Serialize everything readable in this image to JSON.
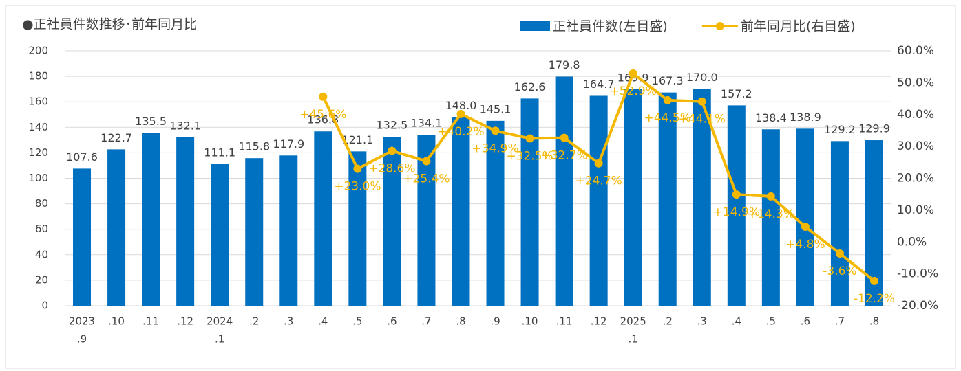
{
  "chart_data": {
    "type": "bar-line",
    "title": "●正社員件数推移･前年同月比",
    "categories": [
      [
        "2023",
        ".9"
      ],
      [
        ".10"
      ],
      [
        ".11"
      ],
      [
        ".12"
      ],
      [
        "2024",
        ".1"
      ],
      [
        ".2"
      ],
      [
        ".3"
      ],
      [
        ".4"
      ],
      [
        ".5"
      ],
      [
        ".6"
      ],
      [
        ".7"
      ],
      [
        ".8"
      ],
      [
        ".9"
      ],
      [
        ".10"
      ],
      [
        ".11"
      ],
      [
        ".12"
      ],
      [
        "2025",
        ".1"
      ],
      [
        ".2"
      ],
      [
        ".3"
      ],
      [
        ".4"
      ],
      [
        ".5"
      ],
      [
        ".6"
      ],
      [
        ".7"
      ],
      [
        ".8"
      ]
    ],
    "series": [
      {
        "name": "正社員件数(左目盛)",
        "type": "bar",
        "color": "#0070c0",
        "values": [
          107.6,
          122.7,
          135.5,
          132.1,
          111.1,
          115.8,
          117.9,
          136.8,
          121.1,
          132.5,
          134.1,
          148.0,
          145.1,
          162.6,
          179.8,
          164.7,
          169.9,
          167.3,
          170.0,
          157.2,
          138.4,
          138.9,
          129.2,
          129.9
        ],
        "value_labels": [
          "107.6",
          "122.7",
          "135.5",
          "132.1",
          "111.1",
          "115.8",
          "117.9",
          "136.8",
          "121.1",
          "132.5",
          "134.1",
          "148.0",
          "145.1",
          "162.6",
          "179.8",
          "164.7",
          "169.9",
          "167.3",
          "170.0",
          "157.2",
          "138.4",
          "138.9",
          "129.2",
          "129.9"
        ]
      },
      {
        "name": "前年同月比(右目盛)",
        "type": "line",
        "axis": "y2",
        "color": "#f5b800",
        "values": [
          null,
          null,
          null,
          null,
          null,
          null,
          null,
          45.6,
          23.0,
          28.6,
          25.4,
          40.2,
          34.9,
          32.5,
          32.7,
          24.7,
          52.9,
          44.5,
          44.1,
          14.9,
          14.3,
          4.8,
          -3.6,
          -12.2
        ],
        "value_labels": [
          null,
          null,
          null,
          null,
          null,
          null,
          null,
          "+45.6%",
          "+23.0%",
          "+28.6%",
          "+25.4%",
          "+40.2%",
          "+34.9%",
          "+32.5%",
          "+32.7%",
          "+24.7%",
          "+52.9%",
          "+44.5%",
          "+44.1%",
          "+14.9%",
          "+14.3%",
          "+4.8%",
          "-3.6%",
          "-12.2%"
        ]
      }
    ],
    "ylim": [
      0,
      200
    ],
    "yticks": [
      0,
      20,
      40,
      60,
      80,
      100,
      120,
      140,
      160,
      180,
      200
    ],
    "y2lim": [
      -20,
      60
    ],
    "y2ticks": [
      {
        "value": -20,
        "label": "-20.0%"
      },
      {
        "value": -10,
        "label": "-10.0%"
      },
      {
        "value": 0,
        "label": "0.0%"
      },
      {
        "value": 10,
        "label": "10.0%"
      },
      {
        "value": 20,
        "label": "20.0%"
      },
      {
        "value": 30,
        "label": "30.0%"
      },
      {
        "value": 40,
        "label": "40.0%"
      },
      {
        "value": 50,
        "label": "50.0%"
      },
      {
        "value": 60,
        "label": "60.0%"
      }
    ],
    "grid": true,
    "legend": "top-right"
  }
}
